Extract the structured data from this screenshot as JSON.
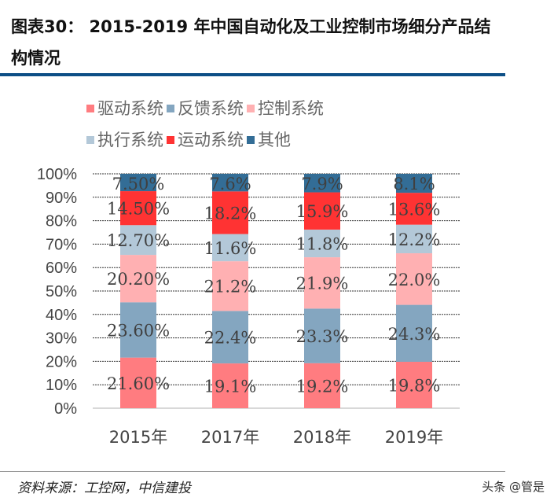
{
  "title": "图表30：  2015-2019 年中国自动化及工业控制市场细分产品结构情况",
  "source": "资料来源：工控网，中信建投",
  "watermark": "头条 @管是",
  "chart_data": {
    "type": "bar",
    "stacked": true,
    "categories": [
      "2015年",
      "2017年",
      "2018年",
      "2019年"
    ],
    "ylim": [
      0,
      100
    ],
    "yticks": [
      "0%",
      "10%",
      "20%",
      "30%",
      "40%",
      "50%",
      "60%",
      "70%",
      "80%",
      "90%",
      "100%"
    ],
    "grid": true,
    "legend_position": "top",
    "series": [
      {
        "name": "驱动系统",
        "color": "#ff7c80",
        "values": [
          21.6,
          19.1,
          19.2,
          19.8
        ],
        "labels": [
          "21.60%",
          "19.1%",
          "19.2%",
          "19.8%"
        ]
      },
      {
        "name": "反馈系统",
        "color": "#84a6c0",
        "values": [
          23.6,
          22.4,
          23.3,
          24.3
        ],
        "labels": [
          "23.60%",
          "22.4%",
          "23.3%",
          "24.3%"
        ]
      },
      {
        "name": "控制系统",
        "color": "#ffb0b2",
        "values": [
          20.2,
          21.2,
          21.9,
          22.0
        ],
        "labels": [
          "20.20%",
          "21.2%",
          "21.9%",
          "22.0%"
        ]
      },
      {
        "name": "执行系统",
        "color": "#b3c8d8",
        "values": [
          12.7,
          11.6,
          11.8,
          12.2
        ],
        "labels": [
          "12.70%",
          "11.6%",
          "11.8%",
          "12.2%"
        ]
      },
      {
        "name": "运动系统",
        "color": "#ff3333",
        "values": [
          14.5,
          18.2,
          15.9,
          13.6
        ],
        "labels": [
          "14.50%",
          "18.2%",
          "15.9%",
          "13.6%"
        ]
      },
      {
        "name": "其他",
        "color": "#336d96",
        "values": [
          7.5,
          7.6,
          7.9,
          8.1
        ],
        "labels": [
          "7.50%",
          "7.6%",
          "7.9%",
          "8.1%"
        ]
      }
    ]
  }
}
